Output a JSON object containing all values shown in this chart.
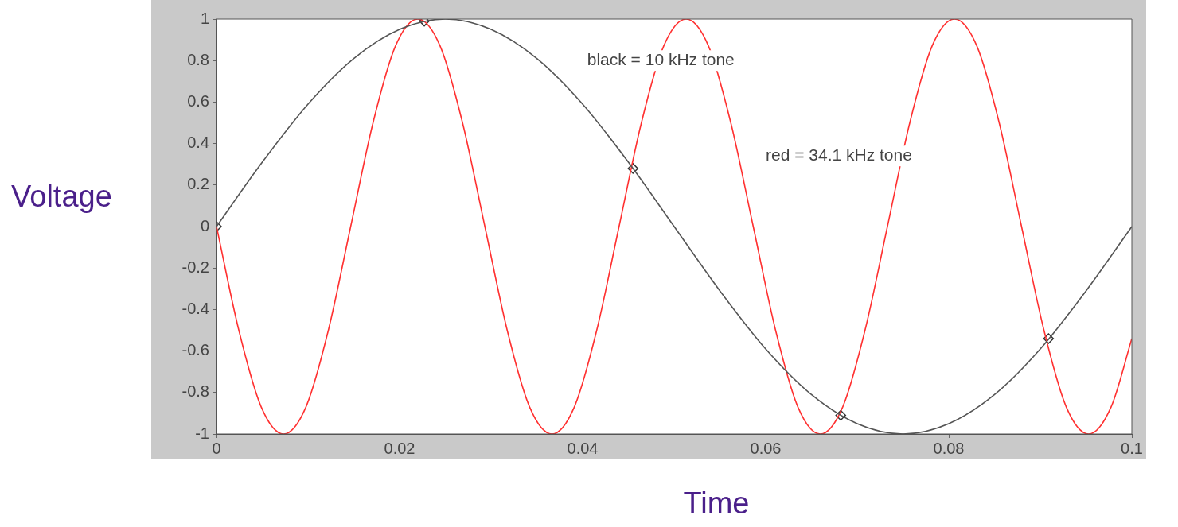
{
  "chart_data": {
    "type": "line",
    "xlabel": "Time",
    "ylabel": "Voltage",
    "xlim": [
      0,
      0.1
    ],
    "xticks": [
      0,
      0.02,
      0.04,
      0.06,
      0.08,
      0.1
    ],
    "ylim": [
      -1,
      1
    ],
    "yticks": [
      -1,
      -0.8,
      -0.6,
      -0.4,
      -0.2,
      0,
      0.2,
      0.4,
      0.6,
      0.8,
      1
    ],
    "grid": false,
    "legend": false,
    "series": [
      {
        "type": "line",
        "color": "#555555",
        "marker": "none",
        "x": [
          0,
          0.005,
          0.01,
          0.015,
          0.02,
          0.025,
          0.03,
          0.035,
          0.04,
          0.045,
          0.05,
          0.055,
          0.06,
          0.065,
          0.07,
          0.075,
          0.08,
          0.085,
          0.09,
          0.095,
          0.1
        ],
        "values": [
          0,
          0.31,
          0.59,
          0.81,
          0.95,
          1,
          0.95,
          0.81,
          0.59,
          0.31,
          0,
          -0.31,
          -0.59,
          -0.81,
          -0.95,
          -1,
          -0.95,
          -0.81,
          -0.59,
          -0.31,
          0
        ]
      },
      {
        "type": "line",
        "color": "#ff3030",
        "marker": "none",
        "x": [
          0,
          0.00244,
          0.00489,
          0.00733,
          0.00977,
          0.01222,
          0.01466,
          0.0171,
          0.01955,
          0.02199,
          0.02443,
          0.02688,
          0.02932,
          0.03176,
          0.03421,
          0.03665,
          0.03909,
          0.04154,
          0.04398,
          0.04642,
          0.04886,
          0.05131,
          0.05375,
          0.05619,
          0.05864,
          0.06108,
          0.06352,
          0.06597,
          0.06841,
          0.07085,
          0.0733,
          0.07574,
          0.07818,
          0.08063,
          0.08307,
          0.08551,
          0.08795,
          0.0904,
          0.09284,
          0.09528,
          0.09773,
          0.1
        ],
        "values": [
          0,
          -0.5,
          -0.87,
          -1,
          -0.87,
          -0.5,
          0,
          0.5,
          0.87,
          1,
          0.87,
          0.5,
          0,
          -0.5,
          -0.87,
          -1,
          -0.87,
          -0.5,
          0,
          0.5,
          0.87,
          1,
          0.87,
          0.5,
          0,
          -0.5,
          -0.87,
          -1,
          -0.87,
          -0.5,
          0,
          0.5,
          0.87,
          1,
          0.87,
          0.5,
          0,
          -0.5,
          -0.87,
          -1,
          -0.87,
          -0.54
        ]
      },
      {
        "type": "scatter",
        "color": "#333333",
        "marker": "diamond",
        "x": [
          0,
          0.0227,
          0.0455,
          0.0682,
          0.0909
        ],
        "values": [
          0,
          0.99,
          0.28,
          -0.91,
          -0.54
        ]
      }
    ],
    "annotations": [
      "black = 10 kHz tone",
      "red = 34.1 kHz tone"
    ]
  }
}
